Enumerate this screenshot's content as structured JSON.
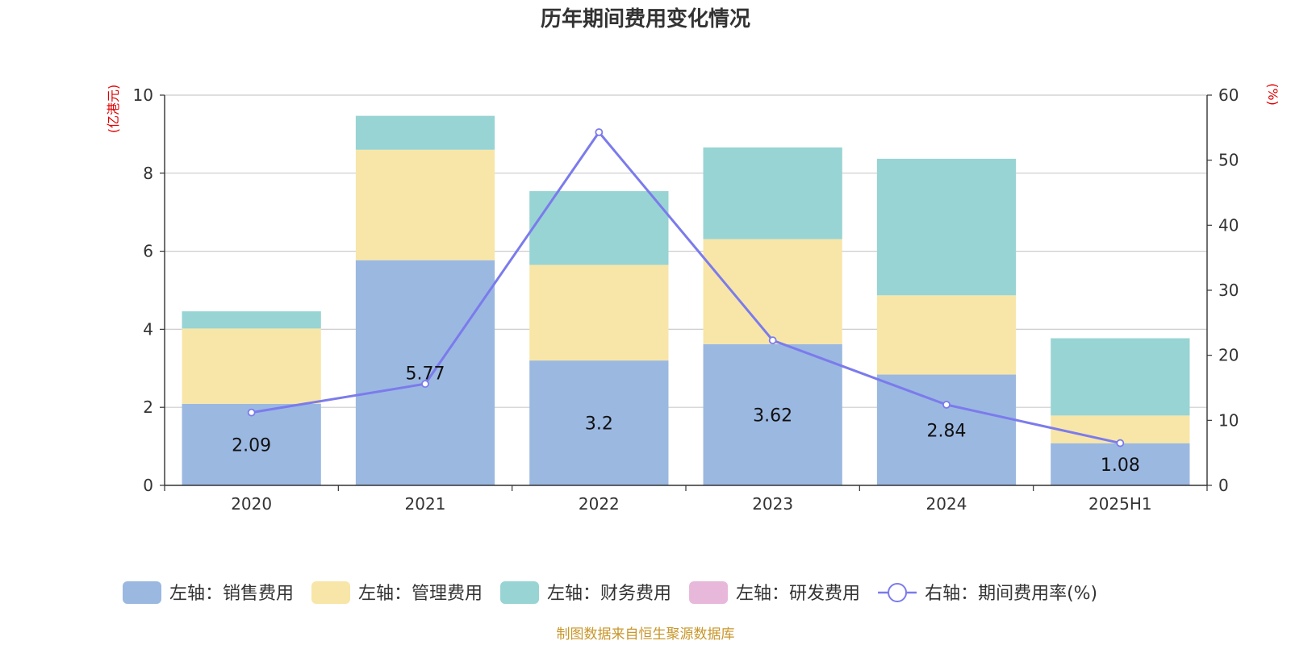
{
  "chart_data": {
    "type": "bar",
    "stacked": true,
    "title": "历年期间费用变化情况",
    "categories": [
      "2020",
      "2021",
      "2022",
      "2023",
      "2024",
      "2025H1"
    ],
    "series": [
      {
        "name": "左轴：销售费用",
        "axis": "left",
        "type": "bar",
        "color": "#9bb8e1",
        "values": [
          2.09,
          5.77,
          3.2,
          3.62,
          2.84,
          1.08
        ],
        "labels": [
          "2.09",
          "5.77",
          "3.2",
          "3.62",
          "2.84",
          "1.08"
        ]
      },
      {
        "name": "左轴：管理费用",
        "axis": "left",
        "type": "bar",
        "color": "#f8e6a8",
        "values": [
          1.93,
          2.83,
          2.45,
          2.69,
          2.03,
          0.71
        ]
      },
      {
        "name": "左轴：财务费用",
        "axis": "left",
        "type": "bar",
        "color": "#98d4d4",
        "values": [
          0.44,
          0.87,
          1.89,
          2.35,
          3.5,
          1.98
        ]
      },
      {
        "name": "左轴：研发费用",
        "axis": "left",
        "type": "bar",
        "color": "#e8b8da",
        "values": [
          0,
          0,
          0,
          0,
          0,
          0
        ]
      },
      {
        "name": "右轴：期间费用率(%)",
        "axis": "right",
        "type": "line",
        "color": "#7b7bec",
        "values": [
          11.2,
          15.6,
          54.3,
          22.3,
          12.4,
          6.5
        ]
      }
    ],
    "y_left": {
      "unit_label": "(亿港元)",
      "ylim": [
        0,
        10
      ],
      "ticks": [
        "0",
        "2",
        "4",
        "6",
        "8",
        "10"
      ]
    },
    "y_right": {
      "unit_label": "(%)",
      "ylim": [
        0,
        60
      ],
      "ticks": [
        "0",
        "10",
        "20",
        "30",
        "40",
        "50",
        "60"
      ]
    },
    "grid": true,
    "legend_position": "bottom"
  },
  "footer": {
    "source": "制图数据来自恒生聚源数据库"
  }
}
